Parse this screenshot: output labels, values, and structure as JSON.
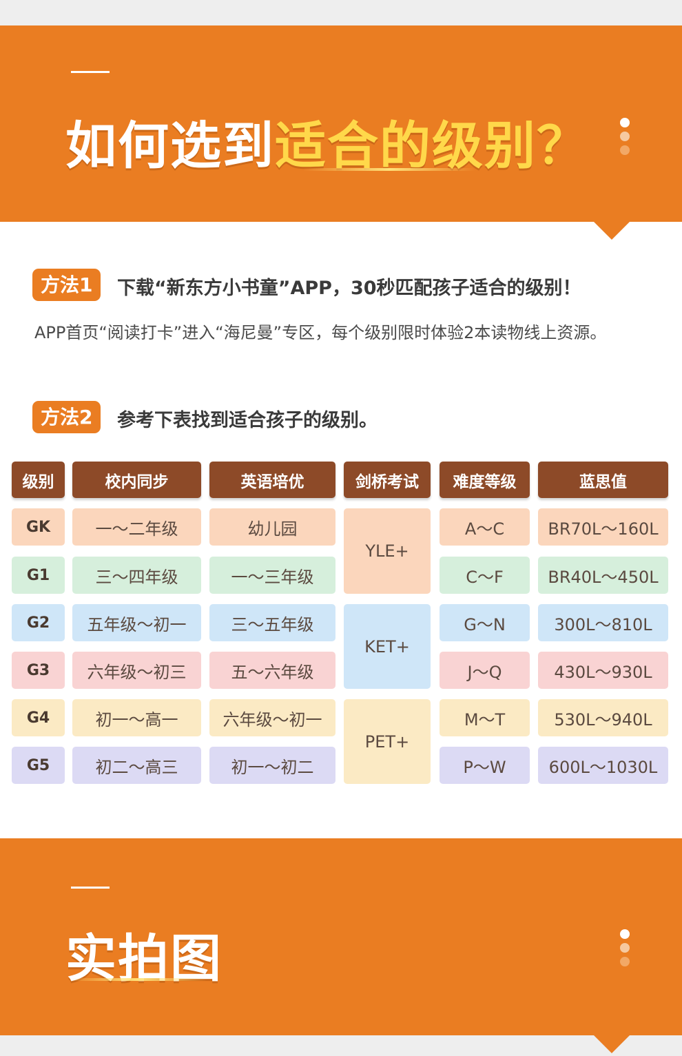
{
  "section1": {
    "title_plain": "如何选到",
    "title_highlight": "适合的级别？"
  },
  "method1": {
    "tag": "方法1",
    "heading": "下载“新东方小书童”APP，30秒匹配孩子适合的级别！",
    "body": "APP首页“阅读打卡”进入“海尼曼”专区，每个级别限时体验2本读物线上资源。"
  },
  "method2": {
    "tag": "方法2",
    "heading": "参考下表找到适合孩子的级别。"
  },
  "table": {
    "headers": [
      "级别",
      "校内同步",
      "英语培优",
      "剑桥考试",
      "难度等级",
      "蓝思值"
    ],
    "rows": [
      {
        "level": "GK",
        "school": "一～二年级",
        "english": "幼儿园",
        "difficulty": "A～C",
        "lexile": "BR70L～160L"
      },
      {
        "level": "G1",
        "school": "三～四年级",
        "english": "一～三年级",
        "difficulty": "C～F",
        "lexile": "BR40L～450L"
      },
      {
        "level": "G2",
        "school": "五年级～初一",
        "english": "三～五年级",
        "difficulty": "G～N",
        "lexile": "300L～810L"
      },
      {
        "level": "G3",
        "school": "六年级～初三",
        "english": "五～六年级",
        "difficulty": "J～Q",
        "lexile": "430L～930L"
      },
      {
        "level": "G4",
        "school": "初一～高一",
        "english": "六年级～初一",
        "difficulty": "M～T",
        "lexile": "530L～940L"
      },
      {
        "level": "G5",
        "school": "初二～高三",
        "english": "初一～初二",
        "difficulty": "P～W",
        "lexile": "600L～1030L"
      }
    ],
    "cambridge": [
      "YLE+",
      "KET+",
      "PET+"
    ]
  },
  "section2": {
    "title": "实拍图"
  },
  "colors": {
    "orange": "#ea7d22",
    "highlight": "#ffd84a",
    "header_brown": "#8d4a28"
  }
}
